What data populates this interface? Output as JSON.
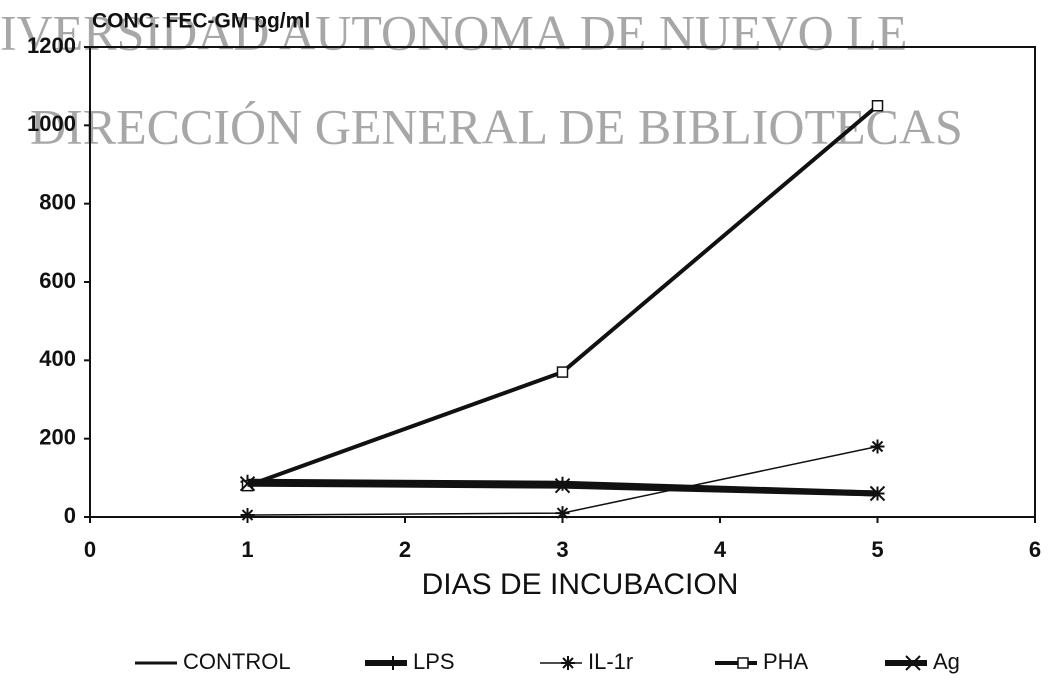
{
  "chart_data": {
    "type": "line",
    "ylabel": "CONC. FEC-GM pg/ml",
    "xlabel": "DIAS DE INCUBACION",
    "annotations": [
      "IVERSIDAD AUTONOMA DE NUEVO LE",
      "DIRECCIÓN GENERAL DE BIBLIOTECAS"
    ],
    "x": [
      1,
      3,
      5
    ],
    "series": [
      {
        "name": "CONTROL",
        "color": "#111111",
        "values": [
          85,
          80,
          60
        ]
      },
      {
        "name": "LPS",
        "color": "#111111",
        "values": [
          90,
          85,
          60
        ]
      },
      {
        "name": "IL-1r",
        "color": "#111111",
        "values": [
          5,
          10,
          180
        ]
      },
      {
        "name": "PHA",
        "color": "#111111",
        "values": [
          80,
          370,
          1050
        ]
      },
      {
        "name": "Ag",
        "color": "#111111",
        "values": [
          85,
          80,
          60
        ]
      }
    ],
    "xlim": [
      0,
      6
    ],
    "xticks": [
      0,
      1,
      2,
      3,
      4,
      5,
      6
    ],
    "ylim": [
      0,
      1200
    ],
    "yticks": [
      0,
      200,
      400,
      600,
      800,
      1000,
      1200
    ],
    "grid": false
  }
}
